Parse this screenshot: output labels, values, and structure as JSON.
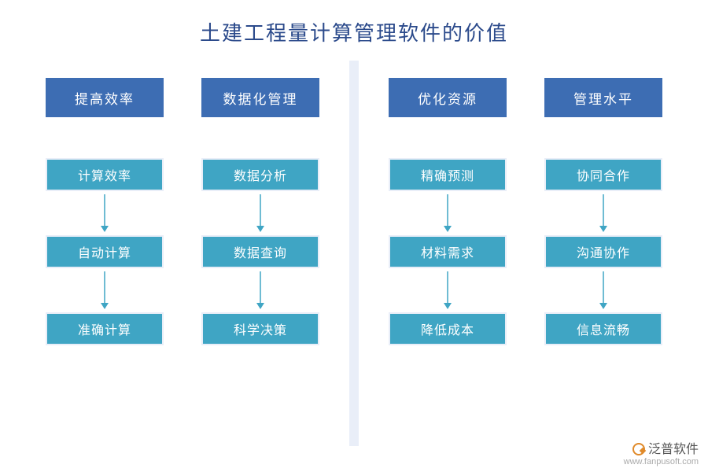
{
  "title": "土建工程量计算管理软件的价值",
  "title_color": "#2b4a8b",
  "outer_panel_bg": "#e9eef8",
  "group_panel_bg": "#ffffff",
  "header_bg": "#3d6db3",
  "header_text_color": "#ffffff",
  "item_bg": "#3fa5c4",
  "item_border": "#e9eef8",
  "item_text_color": "#ffffff",
  "arrow_color": "#3fa5c4",
  "arrow_length": 40,
  "arrow_head_size": 8,
  "groups": [
    {
      "columns": [
        {
          "header": "提高效率",
          "items": [
            "计算效率",
            "自动计算",
            "准确计算"
          ]
        },
        {
          "header": "数据化管理",
          "items": [
            "数据分析",
            "数据查询",
            "科学决策"
          ]
        }
      ]
    },
    {
      "columns": [
        {
          "header": "优化资源",
          "items": [
            "精确预测",
            "材料需求",
            "降低成本"
          ]
        },
        {
          "header": "管理水平",
          "items": [
            "协同合作",
            "沟通协作",
            "信息流畅"
          ]
        }
      ]
    }
  ],
  "watermark": {
    "brand": "泛普软件",
    "url": "www.fanpusoft.com"
  }
}
